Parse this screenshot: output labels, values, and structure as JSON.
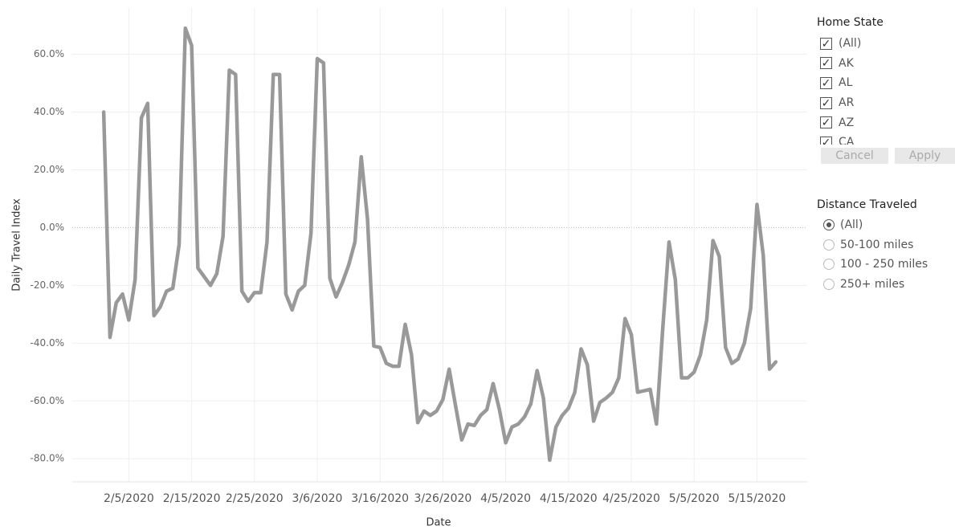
{
  "chart_data": {
    "type": "line",
    "x_label": "Date",
    "y_label": "Daily Travel Index",
    "x": [
      "2/1/2020",
      "2/2/2020",
      "2/3/2020",
      "2/4/2020",
      "2/5/2020",
      "2/6/2020",
      "2/7/2020",
      "2/8/2020",
      "2/9/2020",
      "2/10/2020",
      "2/11/2020",
      "2/12/2020",
      "2/13/2020",
      "2/14/2020",
      "2/15/2020",
      "2/16/2020",
      "2/17/2020",
      "2/18/2020",
      "2/19/2020",
      "2/20/2020",
      "2/21/2020",
      "2/22/2020",
      "2/23/2020",
      "2/24/2020",
      "2/25/2020",
      "2/26/2020",
      "2/27/2020",
      "2/28/2020",
      "2/29/2020",
      "3/1/2020",
      "3/2/2020",
      "3/3/2020",
      "3/4/2020",
      "3/5/2020",
      "3/6/2020",
      "3/7/2020",
      "3/8/2020",
      "3/9/2020",
      "3/10/2020",
      "3/11/2020",
      "3/12/2020",
      "3/13/2020",
      "3/14/2020",
      "3/15/2020",
      "3/16/2020",
      "3/17/2020",
      "3/18/2020",
      "3/19/2020",
      "3/20/2020",
      "3/21/2020",
      "3/22/2020",
      "3/23/2020",
      "3/24/2020",
      "3/25/2020",
      "3/26/2020",
      "3/27/2020",
      "3/28/2020",
      "3/29/2020",
      "3/30/2020",
      "3/31/2020",
      "4/1/2020",
      "4/2/2020",
      "4/3/2020",
      "4/4/2020",
      "4/5/2020",
      "4/6/2020",
      "4/7/2020",
      "4/8/2020",
      "4/9/2020",
      "4/10/2020",
      "4/11/2020",
      "4/12/2020",
      "4/13/2020",
      "4/14/2020",
      "4/15/2020",
      "4/16/2020",
      "4/17/2020",
      "4/18/2020",
      "4/19/2020",
      "4/20/2020",
      "4/21/2020",
      "4/22/2020",
      "4/23/2020",
      "4/24/2020",
      "4/25/2020",
      "4/26/2020",
      "4/27/2020",
      "4/28/2020",
      "4/29/2020",
      "4/30/2020",
      "5/1/2020",
      "5/2/2020",
      "5/3/2020",
      "5/4/2020",
      "5/5/2020",
      "5/6/2020",
      "5/7/2020",
      "5/8/2020",
      "5/9/2020",
      "5/10/2020",
      "5/11/2020",
      "5/12/2020",
      "5/13/2020",
      "5/14/2020",
      "5/15/2020",
      "5/16/2020",
      "5/17/2020",
      "5/18/2020"
    ],
    "series": [
      {
        "color": "#999999",
        "values": [
          40,
          -38,
          -26,
          -23,
          -32,
          -18,
          38,
          43,
          -30.5,
          -27.5,
          -22,
          -21,
          -6,
          69,
          63,
          -14,
          -17,
          -20,
          -16,
          -3,
          54.5,
          53,
          -22,
          -25.5,
          -22.5,
          -22.5,
          -5,
          53,
          53,
          -23,
          -28.5,
          -22,
          -20,
          -2,
          58.5,
          57,
          -17.5,
          -24,
          -19,
          -13,
          -5,
          24.5,
          3,
          -41,
          -41.5,
          -47,
          -48,
          -48,
          -33.5,
          -44,
          -67.5,
          -63.5,
          -65,
          -63.5,
          -59.5,
          -49,
          -61.5,
          -73.5,
          -68,
          -68.5,
          -65,
          -63,
          -54,
          -63,
          -74.5,
          -69,
          -68,
          -65.5,
          -61,
          -49.5,
          -59,
          -80.5,
          -69,
          -65,
          -62.5,
          -57,
          -42,
          -47.5,
          -67,
          -60.5,
          -59,
          -57,
          -52,
          -31.5,
          -37,
          -57,
          -56.5,
          -56,
          -68,
          -35,
          -5,
          -18,
          -52,
          -52,
          -50,
          -44,
          -32,
          -4.5,
          -10,
          -41.5,
          -47,
          -45.5,
          -40,
          -28,
          8,
          -9.5,
          -49,
          -46.5
        ]
      }
    ],
    "xlim": [
      "1/27/2020",
      "5/23/2020"
    ],
    "xticks": [
      "2/5/2020",
      "2/15/2020",
      "2/25/2020",
      "3/6/2020",
      "3/16/2020",
      "3/26/2020",
      "4/5/2020",
      "4/15/2020",
      "4/25/2020",
      "5/5/2020",
      "5/15/2020"
    ],
    "ylim": [
      -88,
      76
    ],
    "yticks": [
      {
        "value": -80,
        "label": "-80.0%"
      },
      {
        "value": -60,
        "label": "-60.0%"
      },
      {
        "value": -40,
        "label": "-40.0%"
      },
      {
        "value": -20,
        "label": "-20.0%"
      },
      {
        "value": 0,
        "label": "0.0%"
      },
      {
        "value": 20,
        "label": "20.0%"
      },
      {
        "value": 40,
        "label": "40.0%"
      },
      {
        "value": 60,
        "label": "60.0%"
      }
    ],
    "grid": true
  },
  "home_state": {
    "title": "Home State",
    "options": [
      "(All)",
      "AK",
      "AL",
      "AR",
      "AZ",
      "CA"
    ],
    "checked": [
      true,
      true,
      true,
      true,
      true,
      true
    ],
    "buttons": [
      "Cancel",
      "Apply"
    ]
  },
  "distance_traveled": {
    "title": "Distance Traveled",
    "options": [
      "(All)",
      "50-100 miles",
      "100 - 250 miles",
      "250+ miles"
    ],
    "selected": 0
  }
}
